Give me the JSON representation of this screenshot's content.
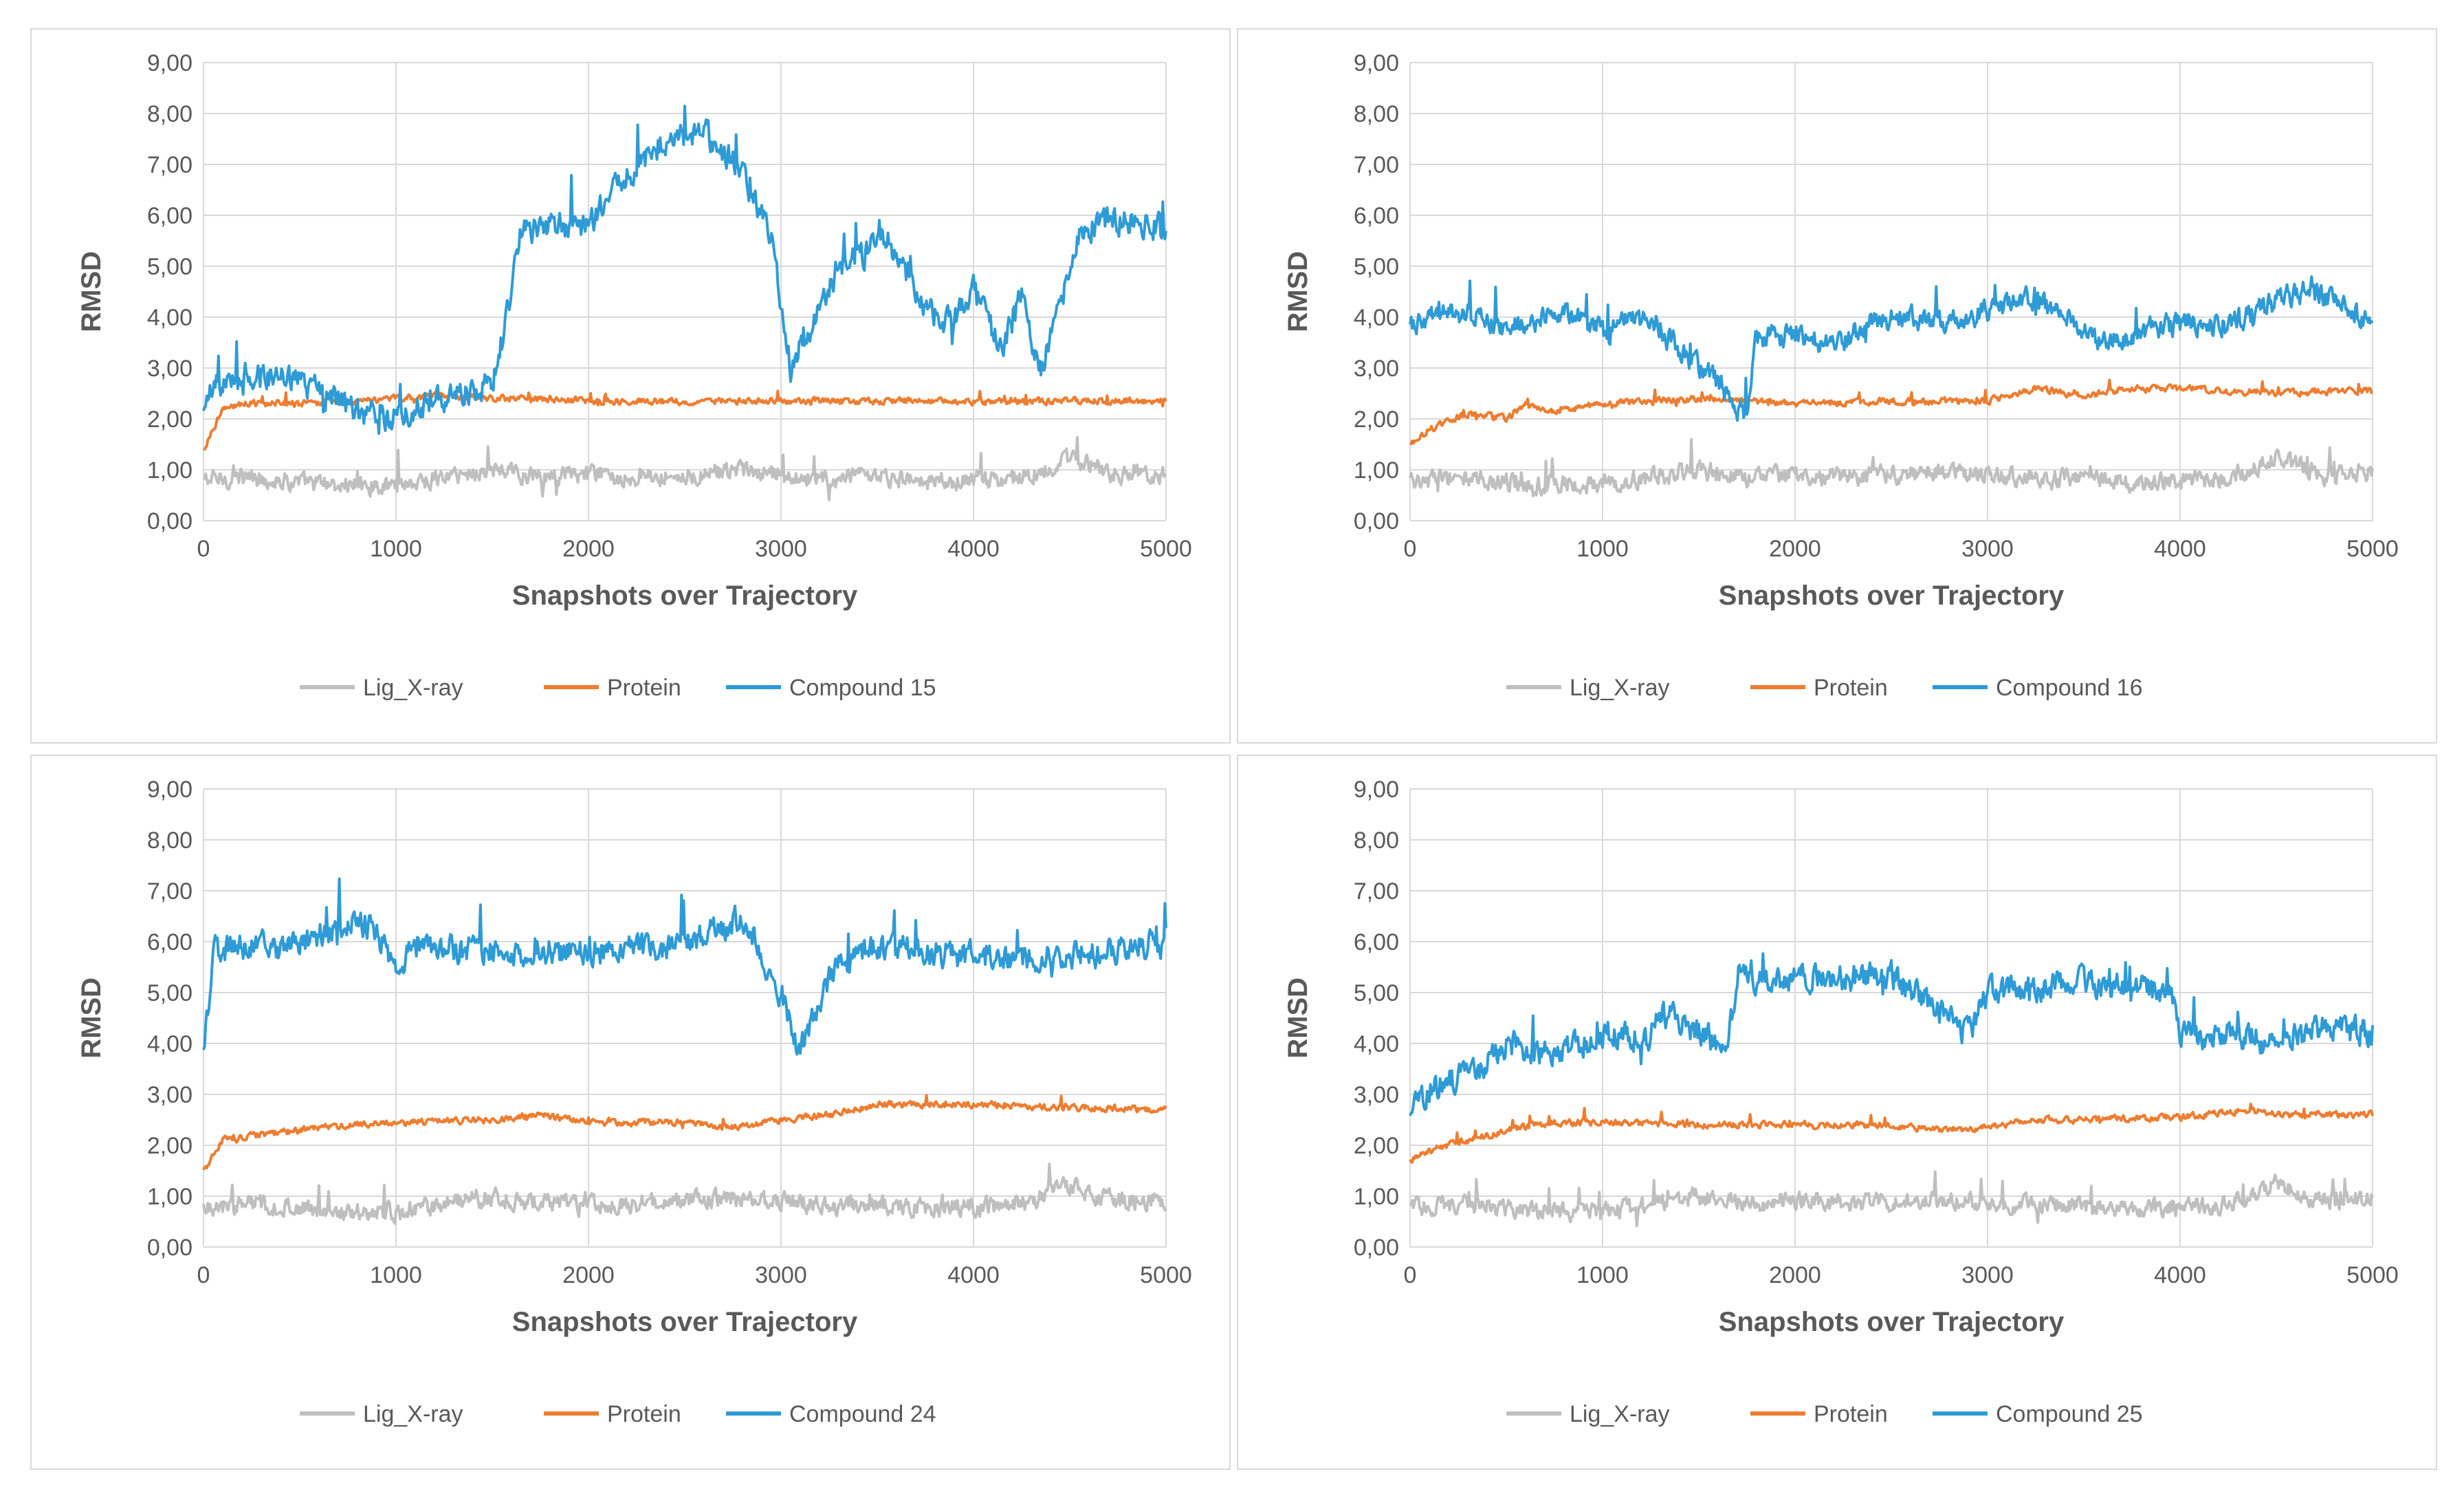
{
  "colors": {
    "lig": "#bfbfbf",
    "protein": "#ed7d31",
    "compound": "#2e9bd6",
    "grid": "#d9d9d9",
    "text": "#595959",
    "panel_border": "#d9d9d9"
  },
  "chart_data": [
    {
      "type": "line",
      "title": "",
      "xlabel": "Snapshots over Trajectory",
      "ylabel": "RMSD",
      "xlim": [
        0,
        5000
      ],
      "ylim": [
        0,
        9
      ],
      "x_ticks": [
        "0",
        "1000",
        "2000",
        "3000",
        "4000",
        "5000"
      ],
      "y_ticks": [
        "0,00",
        "1,00",
        "2,00",
        "3,00",
        "4,00",
        "5,00",
        "6,00",
        "7,00",
        "8,00",
        "9,00"
      ],
      "grid": true,
      "legend": "bottom",
      "series": [
        {
          "name": "Lig_X-ray",
          "color_key": "lig",
          "x": [
            0,
            250,
            500,
            750,
            1000,
            1250,
            1500,
            1750,
            2000,
            2250,
            2500,
            2750,
            3000,
            3250,
            3500,
            3750,
            4000,
            4250,
            4500,
            4750,
            5000
          ],
          "values": [
            0.8,
            0.85,
            0.75,
            0.7,
            0.7,
            0.85,
            1.0,
            0.85,
            0.9,
            0.85,
            0.9,
            0.95,
            0.9,
            0.8,
            0.85,
            0.75,
            0.8,
            0.85,
            1.2,
            0.9,
            0.95
          ],
          "noise": 0.28
        },
        {
          "name": "Protein",
          "color_key": "protein",
          "x": [
            0,
            100,
            250,
            500,
            750,
            1000,
            1250,
            1500,
            1750,
            2000,
            2500,
            3000,
            3500,
            4000,
            4500,
            5000
          ],
          "values": [
            1.4,
            2.2,
            2.3,
            2.3,
            2.35,
            2.4,
            2.45,
            2.4,
            2.4,
            2.35,
            2.35,
            2.35,
            2.35,
            2.35,
            2.35,
            2.35
          ],
          "noise": 0.1
        },
        {
          "name": "Compound 15",
          "color_key": "compound",
          "x": [
            0,
            50,
            250,
            500,
            750,
            1000,
            1250,
            1500,
            1580,
            1650,
            1800,
            2000,
            2200,
            2400,
            2600,
            2800,
            2950,
            3050,
            3150,
            3300,
            3450,
            3550,
            3700,
            3850,
            4000,
            4150,
            4250,
            4350,
            4450,
            4550,
            4700,
            4850,
            5000
          ],
          "values": [
            2.1,
            2.6,
            2.9,
            2.7,
            2.2,
            2.0,
            2.4,
            2.7,
            4.0,
            5.7,
            5.8,
            5.8,
            6.8,
            7.5,
            7.6,
            6.9,
            5.5,
            3.0,
            3.8,
            5.0,
            5.3,
            5.6,
            4.5,
            3.8,
            4.5,
            3.4,
            4.4,
            2.9,
            4.5,
            5.7,
            5.9,
            5.9,
            5.7
          ],
          "noise": 0.42
        }
      ]
    },
    {
      "type": "line",
      "title": "",
      "xlabel": "Snapshots over Trajectory",
      "ylabel": "RMSD",
      "xlim": [
        0,
        5000
      ],
      "ylim": [
        0,
        9
      ],
      "x_ticks": [
        "0",
        "1000",
        "2000",
        "3000",
        "4000",
        "5000"
      ],
      "y_ticks": [
        "0,00",
        "1,00",
        "2,00",
        "3,00",
        "4,00",
        "5,00",
        "6,00",
        "7,00",
        "8,00",
        "9,00"
      ],
      "grid": true,
      "legend": "bottom",
      "series": [
        {
          "name": "Lig_X-ray",
          "color_key": "lig",
          "x": [
            0,
            250,
            500,
            750,
            1000,
            1250,
            1500,
            1750,
            2000,
            2250,
            2500,
            2750,
            3000,
            3250,
            3500,
            3750,
            4000,
            4250,
            4500,
            4750,
            5000
          ],
          "values": [
            0.8,
            0.85,
            0.75,
            0.7,
            0.7,
            0.85,
            1.0,
            0.85,
            0.9,
            0.85,
            0.9,
            0.95,
            0.9,
            0.8,
            0.85,
            0.75,
            0.8,
            0.85,
            1.2,
            0.9,
            0.95
          ],
          "noise": 0.28
        },
        {
          "name": "Protein",
          "color_key": "protein",
          "x": [
            0,
            100,
            300,
            500,
            600,
            750,
            1000,
            1500,
            2000,
            2500,
            3000,
            3250,
            3500,
            3750,
            4000,
            4500,
            5000
          ],
          "values": [
            1.5,
            1.8,
            2.1,
            2.0,
            2.3,
            2.15,
            2.3,
            2.4,
            2.3,
            2.35,
            2.35,
            2.6,
            2.45,
            2.6,
            2.6,
            2.5,
            2.55
          ],
          "noise": 0.1
        },
        {
          "name": "Compound 16",
          "color_key": "compound",
          "x": [
            0,
            100,
            300,
            500,
            800,
            1000,
            1100,
            1250,
            1400,
            1600,
            1750,
            1800,
            2000,
            2200,
            2400,
            2600,
            2800,
            3000,
            3200,
            3400,
            3600,
            3800,
            4000,
            4200,
            4400,
            4600,
            4800,
            5000
          ],
          "values": [
            3.8,
            4.0,
            4.1,
            3.8,
            4.1,
            3.7,
            3.9,
            4.0,
            3.3,
            2.7,
            2.0,
            3.6,
            3.7,
            3.4,
            3.9,
            4.0,
            3.9,
            4.1,
            4.4,
            4.0,
            3.5,
            3.7,
            3.9,
            3.8,
            4.1,
            4.5,
            4.4,
            3.9
          ],
          "noise": 0.35
        }
      ]
    },
    {
      "type": "line",
      "title": "",
      "xlabel": "Snapshots over Trajectory",
      "ylabel": "RMSD",
      "xlim": [
        0,
        5000
      ],
      "ylim": [
        0,
        9
      ],
      "x_ticks": [
        "0",
        "1000",
        "2000",
        "3000",
        "4000",
        "5000"
      ],
      "y_ticks": [
        "0,00",
        "1,00",
        "2,00",
        "3,00",
        "4,00",
        "5,00",
        "6,00",
        "7,00",
        "8,00",
        "9,00"
      ],
      "grid": true,
      "legend": "bottom",
      "series": [
        {
          "name": "Lig_X-ray",
          "color_key": "lig",
          "x": [
            0,
            250,
            500,
            750,
            1000,
            1250,
            1500,
            1750,
            2000,
            2250,
            2500,
            2750,
            3000,
            3250,
            3500,
            3750,
            4000,
            4250,
            4500,
            4750,
            5000
          ],
          "values": [
            0.8,
            0.85,
            0.75,
            0.7,
            0.7,
            0.85,
            1.0,
            0.85,
            0.9,
            0.85,
            0.9,
            0.95,
            0.9,
            0.8,
            0.85,
            0.75,
            0.8,
            0.85,
            1.2,
            0.9,
            0.95
          ],
          "noise": 0.28
        },
        {
          "name": "Protein",
          "color_key": "protein",
          "x": [
            0,
            100,
            300,
            500,
            750,
            1000,
            1500,
            1750,
            2000,
            2500,
            2750,
            3000,
            3250,
            3500,
            4000,
            4500,
            5000
          ],
          "values": [
            1.5,
            2.1,
            2.2,
            2.3,
            2.4,
            2.45,
            2.5,
            2.6,
            2.45,
            2.45,
            2.35,
            2.5,
            2.6,
            2.8,
            2.8,
            2.75,
            2.7
          ],
          "noise": 0.1
        },
        {
          "name": "Compound 24",
          "color_key": "compound",
          "x": [
            0,
            50,
            250,
            500,
            750,
            900,
            1000,
            1100,
            1500,
            2000,
            2500,
            2750,
            2850,
            3000,
            3100,
            3250,
            3400,
            3600,
            4000,
            4500,
            5000
          ],
          "values": [
            3.8,
            5.8,
            5.9,
            5.9,
            6.4,
            6.2,
            5.5,
            5.9,
            5.8,
            5.8,
            5.9,
            6.4,
            6.2,
            5.0,
            3.8,
            5.3,
            5.8,
            5.9,
            5.7,
            5.7,
            6.0
          ],
          "noise": 0.42
        }
      ]
    },
    {
      "type": "line",
      "title": "",
      "xlabel": "Snapshots over Trajectory",
      "ylabel": "RMSD",
      "xlim": [
        0,
        5000
      ],
      "ylim": [
        0,
        9
      ],
      "x_ticks": [
        "0",
        "1000",
        "2000",
        "3000",
        "4000",
        "5000"
      ],
      "y_ticks": [
        "0,00",
        "1,00",
        "2,00",
        "3,00",
        "4,00",
        "5,00",
        "6,00",
        "7,00",
        "8,00",
        "9,00"
      ],
      "grid": true,
      "legend": "bottom",
      "series": [
        {
          "name": "Lig_X-ray",
          "color_key": "lig",
          "x": [
            0,
            250,
            500,
            750,
            1000,
            1250,
            1500,
            1750,
            2000,
            2250,
            2500,
            2750,
            3000,
            3250,
            3500,
            3750,
            4000,
            4250,
            4500,
            4750,
            5000
          ],
          "values": [
            0.8,
            0.85,
            0.75,
            0.7,
            0.7,
            0.85,
            1.0,
            0.85,
            0.9,
            0.85,
            0.9,
            0.95,
            0.9,
            0.8,
            0.85,
            0.75,
            0.8,
            0.85,
            1.2,
            0.9,
            0.95
          ],
          "noise": 0.28
        },
        {
          "name": "Protein",
          "color_key": "protein",
          "x": [
            0,
            100,
            300,
            500,
            750,
            1000,
            1500,
            2000,
            2500,
            2750,
            3000,
            3250,
            3500,
            4000,
            4350,
            4500,
            5000
          ],
          "values": [
            1.7,
            1.9,
            2.1,
            2.3,
            2.45,
            2.45,
            2.4,
            2.4,
            2.4,
            2.3,
            2.35,
            2.5,
            2.5,
            2.55,
            2.7,
            2.6,
            2.6
          ],
          "noise": 0.1
        },
        {
          "name": "Compound 25",
          "color_key": "compound",
          "x": [
            0,
            50,
            200,
            400,
            500,
            750,
            1000,
            1250,
            1300,
            1500,
            1650,
            1700,
            2000,
            2500,
            2800,
            2900,
            3000,
            3500,
            3950,
            4000,
            4250,
            4500,
            4750,
            5000
          ],
          "values": [
            2.5,
            3.0,
            3.3,
            3.6,
            4.0,
            3.8,
            4.2,
            4.1,
            4.6,
            4.2,
            3.9,
            5.3,
            5.3,
            5.3,
            4.5,
            4.2,
            5.0,
            5.2,
            5.0,
            4.1,
            4.2,
            4.0,
            4.3,
            4.2
          ],
          "noise": 0.42
        }
      ]
    }
  ]
}
